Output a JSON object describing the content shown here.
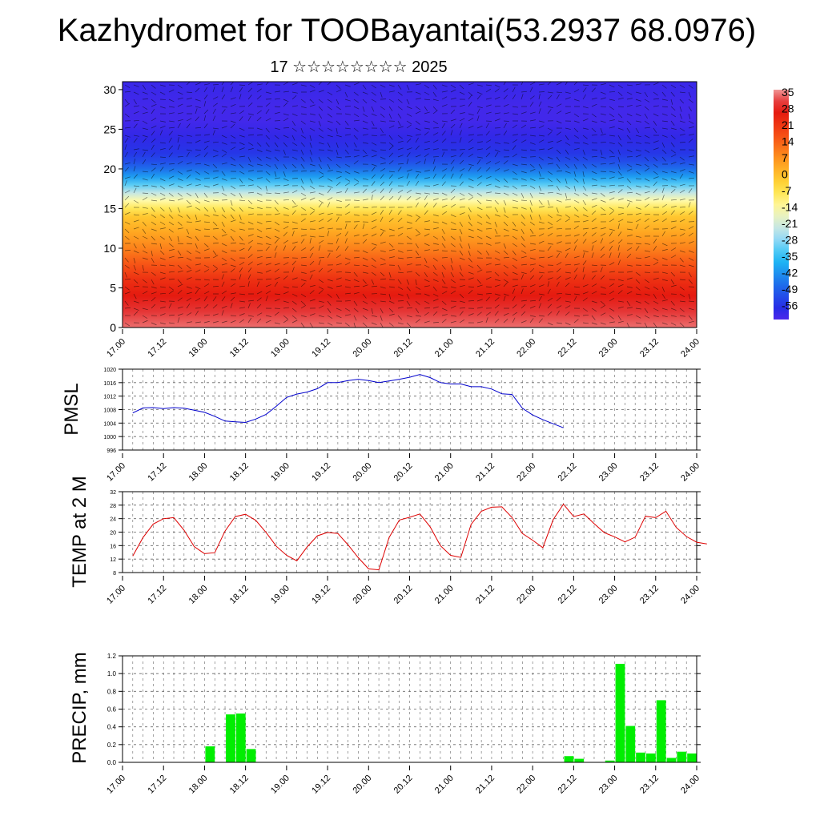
{
  "title": "Kazhydromet for TOOBayantai(53.2937 68.0976)",
  "subtitle": "17 ☆☆☆☆☆☆☆☆ 2025",
  "x_tick_labels": [
    "17.00",
    "17.12",
    "18.00",
    "18.12",
    "19.00",
    "19.12",
    "20.00",
    "20.12",
    "21.00",
    "21.12",
    "22.00",
    "22.12",
    "23.00",
    "23.12",
    "24.00"
  ],
  "colors": {
    "pmsl_line": "#0000cc",
    "temp_line": "#dd0000",
    "precip_bar": "#00ee00",
    "grid": "#555555"
  },
  "chart_data": [
    {
      "type": "heatmap",
      "title": "",
      "xlabel": "",
      "ylabel": "",
      "x_ticks": [
        "17.00",
        "17.12",
        "18.00",
        "18.12",
        "19.00",
        "19.12",
        "20.00",
        "20.12",
        "21.00",
        "21.12",
        "22.00",
        "22.12",
        "23.00",
        "23.12",
        "24.00"
      ],
      "y_ticks": [
        "0",
        "5",
        "10",
        "15",
        "20",
        "25",
        "30"
      ],
      "ylim": [
        0,
        31
      ],
      "colorbar_labels": [
        "35",
        "28",
        "21",
        "14",
        "7",
        "0",
        "-7",
        "-14",
        "-21",
        "-28",
        "-35",
        "-42",
        "-49",
        "-56"
      ],
      "colorbar_range": [
        -56,
        35
      ],
      "profile_by_height": [
        [
          0,
          33
        ],
        [
          2,
          30
        ],
        [
          4,
          26
        ],
        [
          6,
          22
        ],
        [
          8,
          16
        ],
        [
          10,
          10
        ],
        [
          12,
          5
        ],
        [
          14,
          0
        ],
        [
          15,
          -6
        ],
        [
          16,
          -12
        ],
        [
          17,
          -20
        ],
        [
          18,
          -28
        ],
        [
          19,
          -36
        ],
        [
          20,
          -42
        ],
        [
          21,
          -47
        ],
        [
          22,
          -50
        ],
        [
          24,
          -53
        ],
        [
          26,
          -55
        ],
        [
          28,
          -55
        ],
        [
          30,
          -54
        ]
      ],
      "wind_barbs": true
    },
    {
      "type": "line",
      "ylabel": "PMSL",
      "ylim": [
        996,
        1020
      ],
      "y_ticks": [
        "996",
        "1000",
        "1004",
        "1008",
        "1012",
        "1016",
        "1020"
      ],
      "x": [
        0,
        1,
        2,
        3,
        4,
        5,
        6,
        7,
        8,
        9,
        10,
        11,
        12,
        13,
        14,
        15,
        16,
        17,
        18,
        19,
        20,
        21,
        22,
        23,
        24,
        25,
        26,
        27,
        28,
        29,
        30,
        31,
        32,
        33,
        34,
        35,
        36,
        37,
        38,
        39,
        40,
        41,
        42
      ],
      "series": [
        {
          "values": [
            1007,
            1008.5,
            1008.6,
            1008.3,
            1008.6,
            1008.4,
            1007.8,
            1007.2,
            1006,
            1004.6,
            1004.4,
            1004.2,
            1005.2,
            1006.6,
            1009,
            1011.6,
            1012.6,
            1013.2,
            1014.2,
            1016,
            1016,
            1016.6,
            1017,
            1016.6,
            1016,
            1016.5,
            1017,
            1017.6,
            1018.4,
            1017.5,
            1016,
            1015.6,
            1015.6,
            1014.8,
            1014.8,
            1014.1,
            1012.7,
            1012.5,
            1008.4,
            1006.4,
            1005,
            1003.8,
            1002.6
          ]
        }
      ]
    },
    {
      "type": "line",
      "ylabel": "TEMP at 2 M",
      "ylim": [
        8,
        32
      ],
      "y_ticks": [
        "8",
        "12",
        "16",
        "20",
        "24",
        "28",
        "32"
      ],
      "x": [
        0,
        1,
        2,
        3,
        4,
        5,
        6,
        7,
        8,
        9,
        10,
        11,
        12,
        13,
        14,
        15,
        16,
        17,
        18,
        19,
        20,
        21,
        22,
        23,
        24,
        25,
        26,
        27,
        28,
        29,
        30,
        31,
        32,
        33,
        34,
        35,
        36,
        37,
        38,
        39,
        40,
        41,
        42,
        43,
        44,
        45,
        46,
        47,
        48,
        49,
        50,
        51,
        52,
        53,
        54,
        55,
        56
      ],
      "series": [
        {
          "values": [
            12.9,
            18.4,
            22.4,
            24,
            24.3,
            20.6,
            15.7,
            13.6,
            13.9,
            20.3,
            24.6,
            25.3,
            23.5,
            19.9,
            15.8,
            13.1,
            11.5,
            15.6,
            18.9,
            19.9,
            19.6,
            16.2,
            12.4,
            9.1,
            8.8,
            18.4,
            23.6,
            24.4,
            25.4,
            21.6,
            16,
            13.1,
            12.5,
            22.3,
            26.2,
            27.4,
            27.5,
            24.3,
            19.6,
            17.6,
            15.4,
            23.7,
            28.3,
            24.6,
            25.4,
            22.5,
            19.8,
            18.6,
            17.1,
            18.5,
            24.7,
            24.3,
            26.2,
            21.4,
            18.7,
            17,
            16.5
          ]
        }
      ]
    },
    {
      "type": "bar",
      "ylabel": "PRECIP, mm",
      "ylim": [
        0,
        1.2
      ],
      "y_ticks": [
        "0.0",
        "0.2",
        "0.4",
        "0.6",
        "0.8",
        "1.0",
        "1.2"
      ],
      "bar_width_hours": 3,
      "categories": [
        "18.00",
        "18.06",
        "18.09",
        "18.12",
        "22.09",
        "22.12",
        "22.21",
        "23.00",
        "23.03",
        "23.06",
        "23.09",
        "23.12",
        "23.15",
        "23.18",
        "23.21"
      ],
      "values": [
        0.18,
        0.54,
        0.55,
        0.15,
        0.07,
        0.04,
        0.02,
        1.11,
        0.41,
        0.11,
        0.1,
        0.7,
        0.05,
        0.12,
        0.1
      ]
    }
  ]
}
